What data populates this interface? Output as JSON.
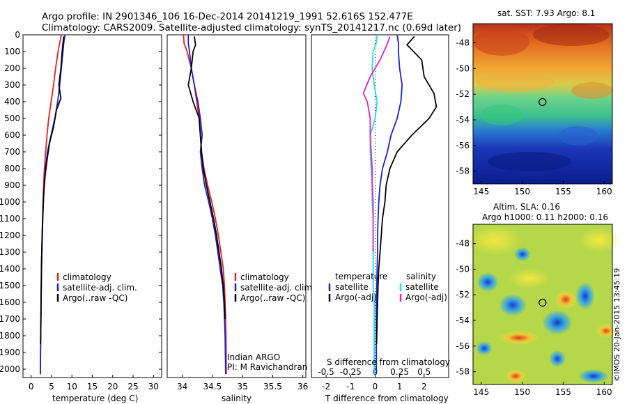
{
  "header": {
    "title_line1": "Argo profile: IN 2901346_106 16-Dec-2014 20141219_1991 52.616S 152.477E",
    "title_line2": "Climatology: CARS2009. Satellite-adjusted climatology: synTS_20141217.nc (0.69d later)"
  },
  "colors": {
    "climatology": "#e8201b",
    "satellite": "#1a1fd6",
    "argo": "#000000",
    "satellite_s": "#22dede",
    "argo_s": "#e020d0"
  },
  "depth_axis": {
    "range": [
      0,
      2050
    ],
    "ticks": [
      "0",
      "100",
      "200",
      "300",
      "400",
      "500",
      "600",
      "700",
      "800",
      "900",
      "1000",
      "1100",
      "1200",
      "1300",
      "1400",
      "1500",
      "1600",
      "1700",
      "1800",
      "1900",
      "2000"
    ]
  },
  "chart_data": [
    {
      "type": "line",
      "id": "temperature",
      "xlabel": "temperature (deg C)",
      "xlim": [
        -2,
        32
      ],
      "xticks": [
        "0",
        "5",
        "10",
        "15",
        "20",
        "25",
        "30"
      ],
      "ylim": [
        0,
        2050
      ],
      "legend": {
        "items": [
          "climatology",
          "satellite-adj. clim.",
          "Argo(..raw -QC)"
        ],
        "placement": "center-right"
      },
      "series": [
        {
          "name": "climatology",
          "color": "#e8201b",
          "x": [
            7.4,
            7.0,
            6.6,
            6.0,
            5.5,
            4.9,
            4.3,
            3.9,
            3.55,
            3.25,
            3.05,
            2.9,
            2.8,
            2.7,
            2.6,
            2.55,
            2.5,
            2.45,
            2.4,
            2.35,
            2.3,
            2.25
          ],
          "y": [
            0,
            50,
            100,
            200,
            300,
            400,
            500,
            600,
            700,
            800,
            900,
            1000,
            1100,
            1200,
            1300,
            1400,
            1500,
            1600,
            1700,
            1800,
            1900,
            2030
          ]
        },
        {
          "name": "satellite-adj. clim.",
          "color": "#1a1fd6",
          "x": [
            8.3,
            8.0,
            7.8,
            7.4,
            7.0,
            6.5,
            5.8,
            4.9,
            4.0,
            3.5,
            3.2,
            3.0,
            2.85,
            2.75,
            2.65,
            2.55,
            2.5,
            2.45,
            2.4,
            2.35,
            2.3,
            2.25
          ],
          "y": [
            0,
            50,
            100,
            200,
            300,
            400,
            500,
            600,
            700,
            800,
            900,
            1000,
            1100,
            1200,
            1300,
            1400,
            1500,
            1600,
            1700,
            1800,
            1900,
            2030
          ]
        },
        {
          "name": "Argo(..raw -QC)",
          "color": "#000000",
          "x": [
            8.0,
            7.8,
            7.6,
            7.3,
            6.8,
            7.3,
            6.2,
            5.5,
            4.5,
            3.9,
            3.4,
            3.1,
            2.9,
            2.75,
            2.65,
            2.55,
            2.5,
            2.45,
            2.4,
            2.35,
            2.3
          ],
          "y": [
            10,
            50,
            100,
            200,
            300,
            380,
            450,
            550,
            650,
            750,
            850,
            950,
            1050,
            1150,
            1250,
            1350,
            1450,
            1550,
            1650,
            1750,
            1850
          ]
        }
      ]
    },
    {
      "type": "line",
      "id": "salinity",
      "xlabel": "salinity",
      "xlim": [
        33.75,
        36.05
      ],
      "xticks": [
        "34",
        "34.5",
        "35",
        "35.5",
        "36"
      ],
      "ylim": [
        0,
        2050
      ],
      "legend": {
        "items": [
          "climatology",
          "satellite-adj. clim.",
          "Argo(..raw -QC)"
        ],
        "placement": "center-right"
      },
      "annotation": [
        "Indian ARGO",
        "PI: M Ravichandran"
      ],
      "series": [
        {
          "name": "climatology",
          "color": "#e8201b",
          "x": [
            34.02,
            34.03,
            34.08,
            34.15,
            34.2,
            34.24,
            34.28,
            34.3,
            34.32,
            34.36,
            34.42,
            34.49,
            34.55,
            34.6,
            34.64,
            34.68,
            34.7,
            34.71,
            34.72,
            34.725,
            34.73
          ],
          "y": [
            0,
            50,
            100,
            200,
            300,
            400,
            500,
            600,
            700,
            800,
            900,
            1000,
            1100,
            1200,
            1300,
            1400,
            1500,
            1600,
            1700,
            1800,
            2030
          ]
        },
        {
          "name": "satellite-adj. clim.",
          "color": "#1a1fd6",
          "x": [
            34.1,
            34.1,
            34.12,
            34.15,
            34.2,
            34.26,
            34.3,
            34.33,
            34.3,
            34.33,
            34.37,
            34.44,
            34.5,
            34.55,
            34.59,
            34.63,
            34.67,
            34.69,
            34.7,
            34.71,
            34.72
          ],
          "y": [
            0,
            50,
            100,
            200,
            300,
            400,
            500,
            600,
            700,
            800,
            900,
            1000,
            1100,
            1200,
            1300,
            1400,
            1500,
            1600,
            1700,
            1800,
            2030
          ]
        },
        {
          "name": "Argo(..raw -QC)",
          "color": "#000000",
          "x": [
            34.2,
            34.22,
            34.18,
            34.15,
            34.1,
            34.18,
            34.28,
            34.3,
            34.32,
            34.35,
            34.4,
            34.46,
            34.52,
            34.57,
            34.61,
            34.65,
            34.68,
            34.7,
            34.71
          ],
          "y": [
            10,
            60,
            100,
            200,
            300,
            400,
            500,
            600,
            700,
            800,
            900,
            1000,
            1100,
            1200,
            1300,
            1400,
            1500,
            1600,
            1700
          ]
        }
      ]
    },
    {
      "type": "line",
      "id": "differences",
      "xlabel": "T difference from climatology",
      "x2label": "S difference from climatology",
      "xlim": [
        -2.6,
        3.0
      ],
      "xticks": [
        "-2",
        "-1",
        "0",
        "1",
        "2"
      ],
      "x2lim": [
        -0.65,
        0.75
      ],
      "x2ticks": [
        "-0.5",
        "-0.25",
        "0",
        "0.25",
        "0.5"
      ],
      "ylim": [
        0,
        2050
      ],
      "legend": {
        "temperature_title": "temperature",
        "salinity_title": "salinity",
        "temperature_items": [
          "satellite",
          "Argo(-adj)"
        ],
        "salinity_items": [
          "satellite",
          "Argo(-adj)"
        ],
        "placement": "lower-center"
      },
      "series": [
        {
          "name": "satellite",
          "group": "temperature",
          "color": "#1a1fd6",
          "x": [
            0.9,
            0.95,
            0.95,
            1.0,
            1.1,
            1.05,
            0.9,
            0.65,
            0.5,
            0.3,
            0.2,
            0.15,
            0.12,
            0.1,
            0.1,
            0.08,
            0.07,
            0.05,
            0.05,
            0.05,
            0.05
          ],
          "y": [
            0,
            50,
            100,
            200,
            300,
            400,
            500,
            600,
            700,
            800,
            900,
            1000,
            1100,
            1200,
            1300,
            1400,
            1500,
            1600,
            1700,
            1800,
            2030
          ]
        },
        {
          "name": "Argo(-adj)",
          "group": "temperature",
          "color": "#000000",
          "x": [
            1.6,
            1.3,
            1.9,
            2.0,
            2.4,
            2.5,
            2.2,
            1.5,
            0.9,
            0.6,
            0.45,
            0.4,
            0.3,
            0.25,
            0.2,
            0.15,
            0.12,
            0.1,
            0.08,
            0.06
          ],
          "y": [
            10,
            60,
            150,
            250,
            350,
            430,
            500,
            600,
            700,
            800,
            900,
            1000,
            1100,
            1200,
            1300,
            1400,
            1500,
            1600,
            1700,
            1850
          ]
        },
        {
          "name": "satellite",
          "group": "salinity",
          "color": "#22dede",
          "x": [
            0.02,
            0.01,
            -0.02,
            -0.03,
            -0.01,
            0.02,
            0.0,
            -0.05,
            -0.05,
            -0.04,
            -0.03,
            -0.03,
            -0.02,
            -0.02,
            -0.02,
            -0.02,
            -0.02,
            -0.01,
            -0.01,
            -0.01,
            -0.01
          ],
          "y": [
            0,
            50,
            100,
            200,
            300,
            400,
            500,
            600,
            700,
            800,
            900,
            1000,
            1100,
            1200,
            1300,
            1400,
            1500,
            1600,
            1700,
            1800,
            2030
          ]
        },
        {
          "name": "Argo(-adj)",
          "group": "salinity",
          "color": "#e020d0",
          "x": [
            0.15,
            0.12,
            0.05,
            -0.05,
            -0.12,
            -0.08,
            -0.05,
            -0.05,
            -0.04,
            -0.03,
            -0.03,
            -0.02,
            -0.02,
            -0.02,
            -0.02
          ],
          "y": [
            10,
            60,
            150,
            250,
            350,
            400,
            500,
            600,
            700,
            800,
            900,
            1000,
            1100,
            1200,
            1300
          ]
        }
      ]
    },
    {
      "type": "heatmap",
      "id": "sst-map",
      "title": "sat. SST: 7.93 Argo: 8.1",
      "xticks": [
        "145",
        "150",
        "155",
        "160"
      ],
      "yticks": [
        "-48",
        "-50",
        "-52",
        "-54",
        "-56",
        "-58"
      ],
      "xlim": [
        144,
        161
      ],
      "ylim": [
        -59,
        -46.5
      ],
      "marker": {
        "lon": 152.477,
        "lat": -52.616
      }
    },
    {
      "type": "heatmap",
      "id": "sla-map",
      "title": "Altim. SLA: 0.16",
      "subtitle": "Argo h1000: 0.11 h2000: 0.16",
      "xticks": [
        "145",
        "150",
        "155",
        "160"
      ],
      "yticks": [
        "-48",
        "-50",
        "-52",
        "-54",
        "-56",
        "-58"
      ],
      "xlim": [
        144,
        161
      ],
      "ylim": [
        -59,
        -46.5
      ],
      "marker": {
        "lon": 152.477,
        "lat": -52.616
      }
    }
  ],
  "footer": {
    "credit": "©IMOS 20-Jan-2015 13:45:19"
  }
}
